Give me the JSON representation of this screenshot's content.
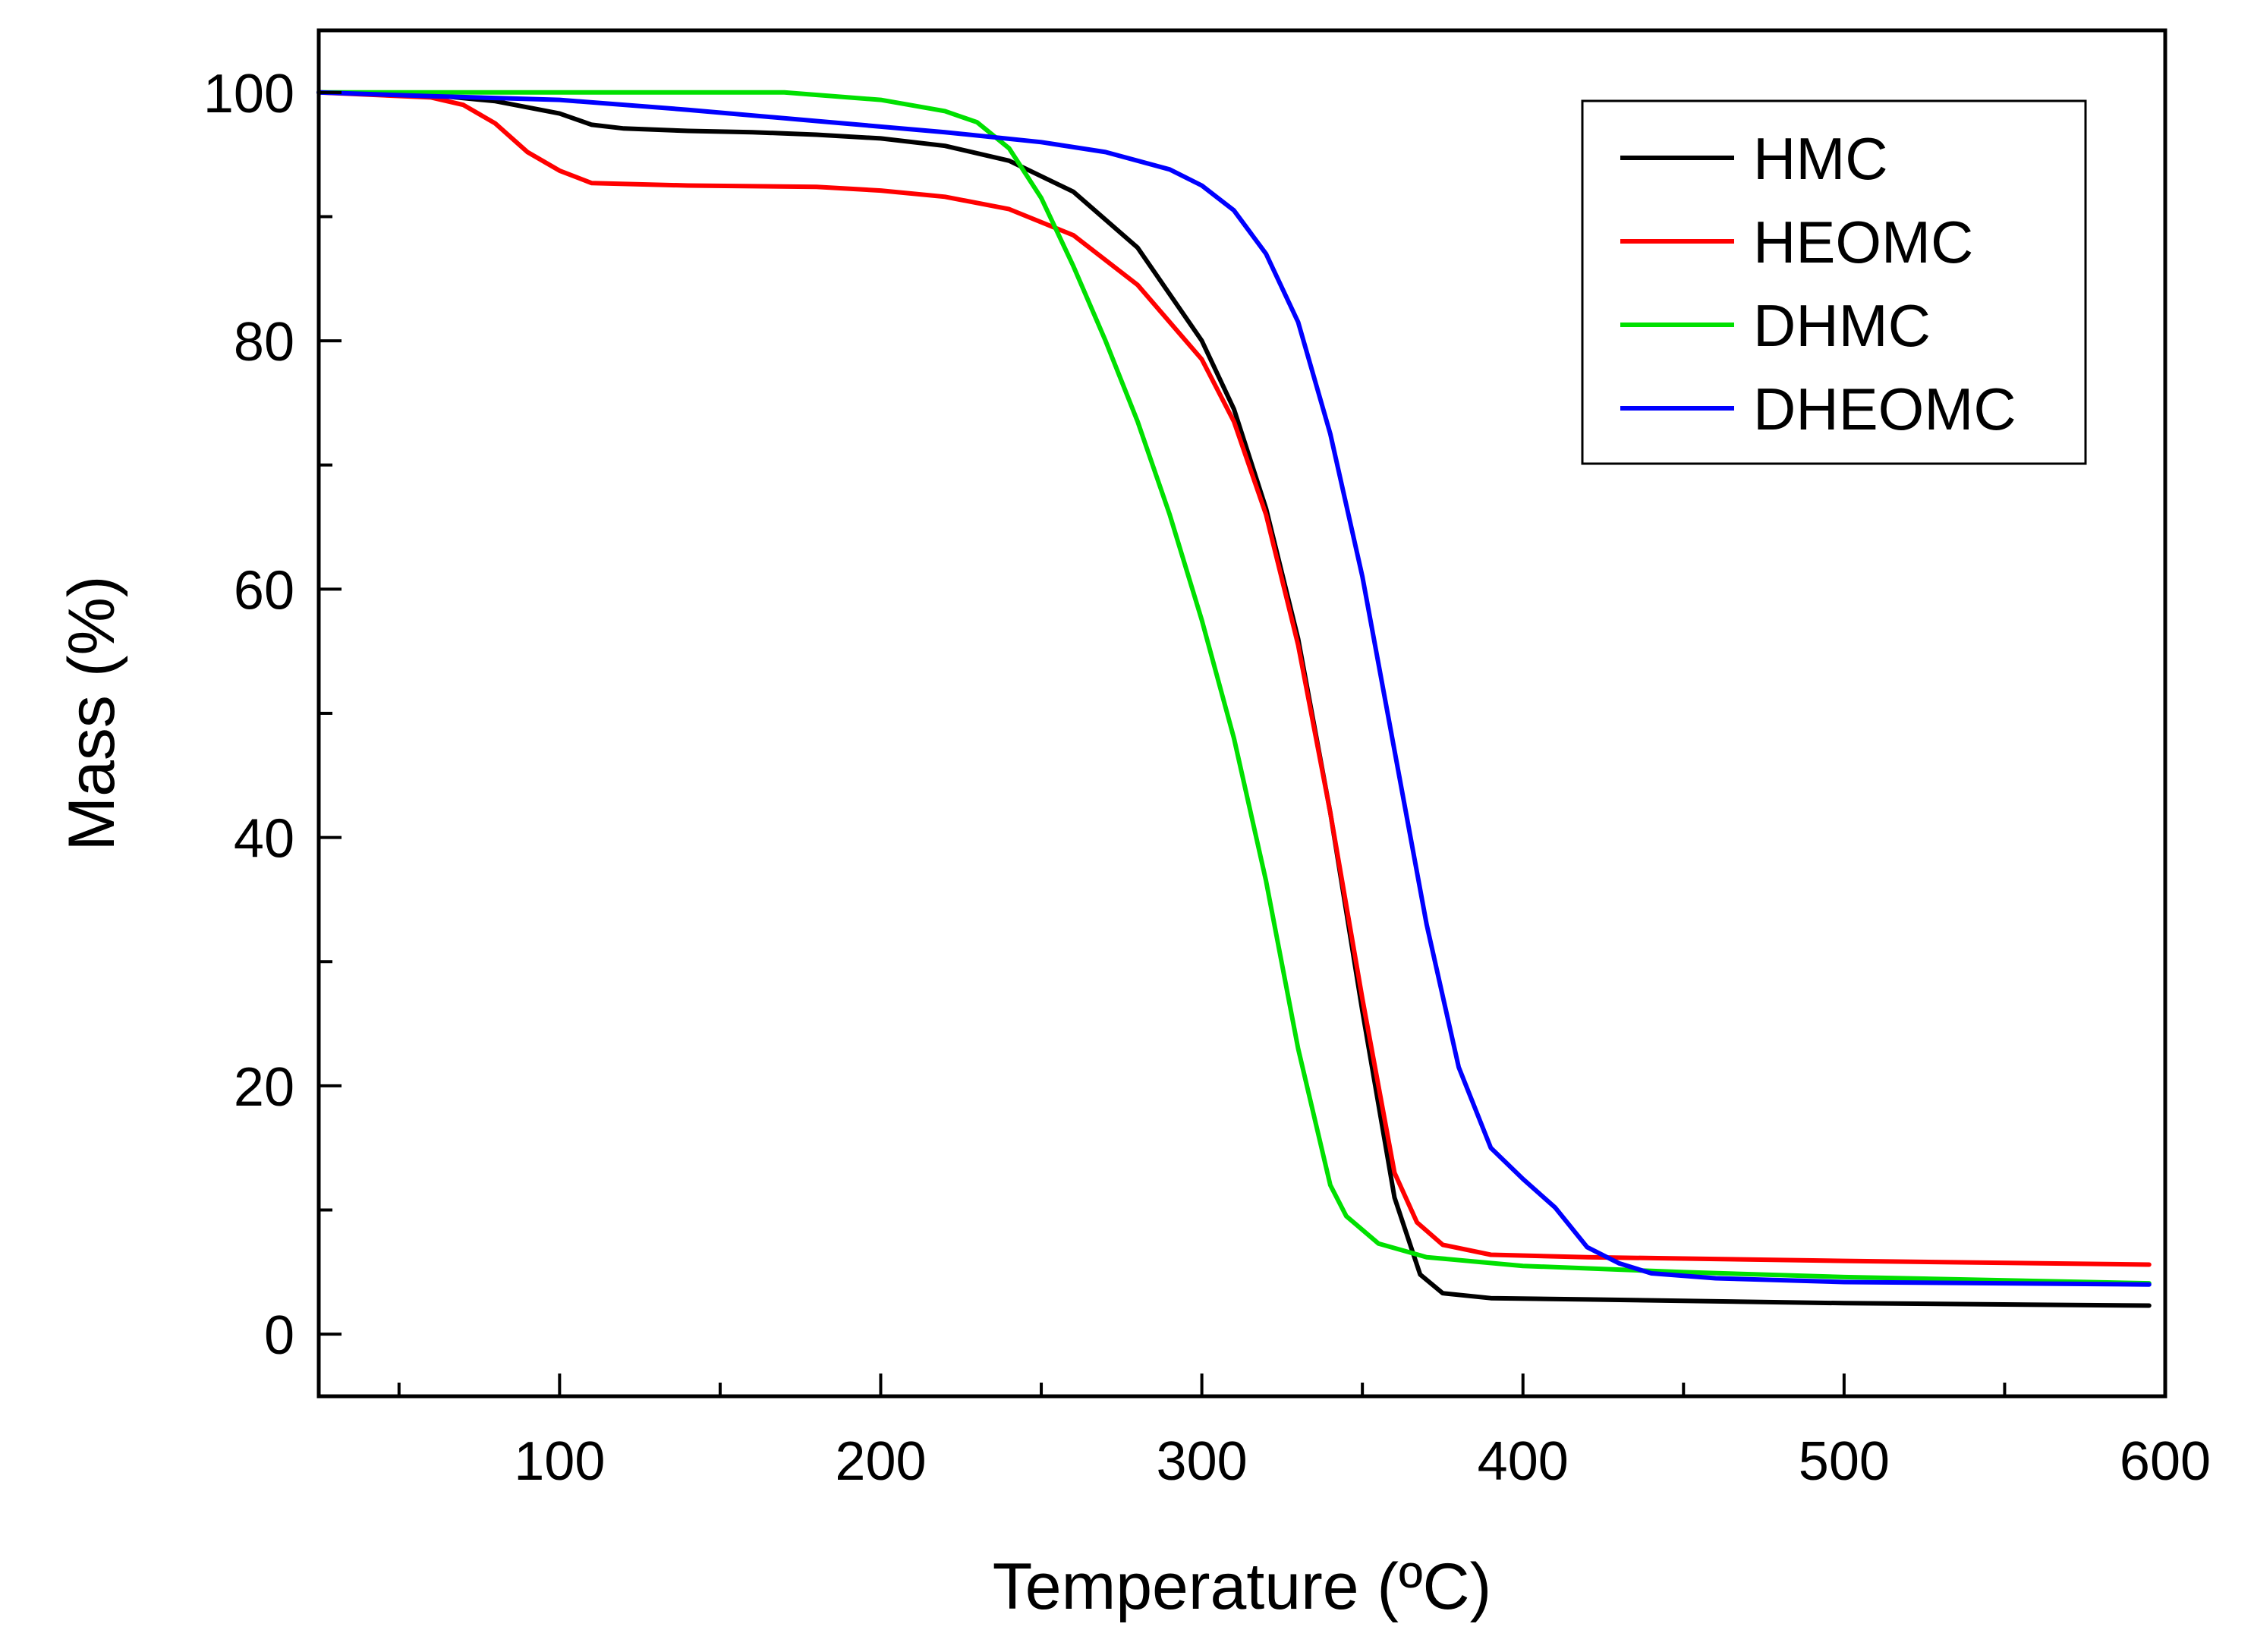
{
  "chart_data": {
    "type": "line",
    "title": "",
    "xlabel": "Temperature (ºC)",
    "ylabel": "Mass (%)",
    "xlim": [
      25,
      600
    ],
    "ylim": [
      -5,
      105
    ],
    "xticks": [
      100,
      200,
      300,
      400,
      500,
      600
    ],
    "yticks": [
      0,
      20,
      40,
      60,
      80,
      100
    ],
    "x_minor_step": 50,
    "y_minor_step": 10,
    "grid": false,
    "legend_position": "top-right",
    "series": [
      {
        "name": "HMC",
        "color": "#000000",
        "points": [
          [
            25,
            100
          ],
          [
            60,
            99.8
          ],
          [
            80,
            99.3
          ],
          [
            100,
            98.3
          ],
          [
            110,
            97.4
          ],
          [
            120,
            97.1
          ],
          [
            140,
            96.9
          ],
          [
            160,
            96.8
          ],
          [
            180,
            96.6
          ],
          [
            200,
            96.3
          ],
          [
            220,
            95.7
          ],
          [
            240,
            94.5
          ],
          [
            260,
            92.0
          ],
          [
            280,
            87.5
          ],
          [
            300,
            80.0
          ],
          [
            310,
            74.5
          ],
          [
            320,
            66.5
          ],
          [
            330,
            56.0
          ],
          [
            340,
            42.0
          ],
          [
            350,
            26.0
          ],
          [
            360,
            11.0
          ],
          [
            368,
            4.8
          ],
          [
            375,
            3.3
          ],
          [
            390,
            2.9
          ],
          [
            420,
            2.8
          ],
          [
            500,
            2.5
          ],
          [
            595,
            2.3
          ]
        ]
      },
      {
        "name": "HEOMC",
        "color": "#ff0000",
        "points": [
          [
            25,
            100
          ],
          [
            60,
            99.6
          ],
          [
            70,
            99.0
          ],
          [
            80,
            97.5
          ],
          [
            90,
            95.2
          ],
          [
            100,
            93.7
          ],
          [
            110,
            92.7
          ],
          [
            140,
            92.5
          ],
          [
            180,
            92.4
          ],
          [
            200,
            92.1
          ],
          [
            220,
            91.6
          ],
          [
            240,
            90.6
          ],
          [
            260,
            88.5
          ],
          [
            280,
            84.5
          ],
          [
            300,
            78.5
          ],
          [
            310,
            73.5
          ],
          [
            320,
            66.0
          ],
          [
            330,
            55.5
          ],
          [
            340,
            42.0
          ],
          [
            350,
            27.0
          ],
          [
            360,
            13.0
          ],
          [
            367,
            9.0
          ],
          [
            375,
            7.2
          ],
          [
            390,
            6.4
          ],
          [
            420,
            6.2
          ],
          [
            500,
            5.9
          ],
          [
            595,
            5.6
          ]
        ]
      },
      {
        "name": "DHMC",
        "color": "#00e000",
        "points": [
          [
            25,
            100
          ],
          [
            60,
            100
          ],
          [
            120,
            100
          ],
          [
            170,
            100
          ],
          [
            200,
            99.4
          ],
          [
            220,
            98.5
          ],
          [
            230,
            97.6
          ],
          [
            240,
            95.5
          ],
          [
            250,
            91.5
          ],
          [
            260,
            86.0
          ],
          [
            270,
            80.0
          ],
          [
            280,
            73.5
          ],
          [
            290,
            66.0
          ],
          [
            300,
            57.5
          ],
          [
            310,
            48.0
          ],
          [
            320,
            36.5
          ],
          [
            330,
            23.0
          ],
          [
            340,
            12.0
          ],
          [
            345,
            9.5
          ],
          [
            355,
            7.3
          ],
          [
            370,
            6.2
          ],
          [
            400,
            5.5
          ],
          [
            450,
            5.0
          ],
          [
            500,
            4.6
          ],
          [
            595,
            4.1
          ]
        ]
      },
      {
        "name": "DHEOMC",
        "color": "#0000ff",
        "points": [
          [
            25,
            100
          ],
          [
            60,
            99.7
          ],
          [
            100,
            99.4
          ],
          [
            140,
            98.6
          ],
          [
            180,
            97.7
          ],
          [
            220,
            96.8
          ],
          [
            250,
            96.0
          ],
          [
            270,
            95.2
          ],
          [
            290,
            93.8
          ],
          [
            300,
            92.5
          ],
          [
            310,
            90.5
          ],
          [
            320,
            87.0
          ],
          [
            330,
            81.5
          ],
          [
            340,
            72.5
          ],
          [
            350,
            61.0
          ],
          [
            360,
            47.0
          ],
          [
            370,
            33.0
          ],
          [
            380,
            21.5
          ],
          [
            390,
            15.0
          ],
          [
            400,
            12.5
          ],
          [
            410,
            10.2
          ],
          [
            420,
            7.0
          ],
          [
            430,
            5.7
          ],
          [
            440,
            4.9
          ],
          [
            460,
            4.5
          ],
          [
            500,
            4.2
          ],
          [
            595,
            4.0
          ]
        ]
      }
    ]
  }
}
